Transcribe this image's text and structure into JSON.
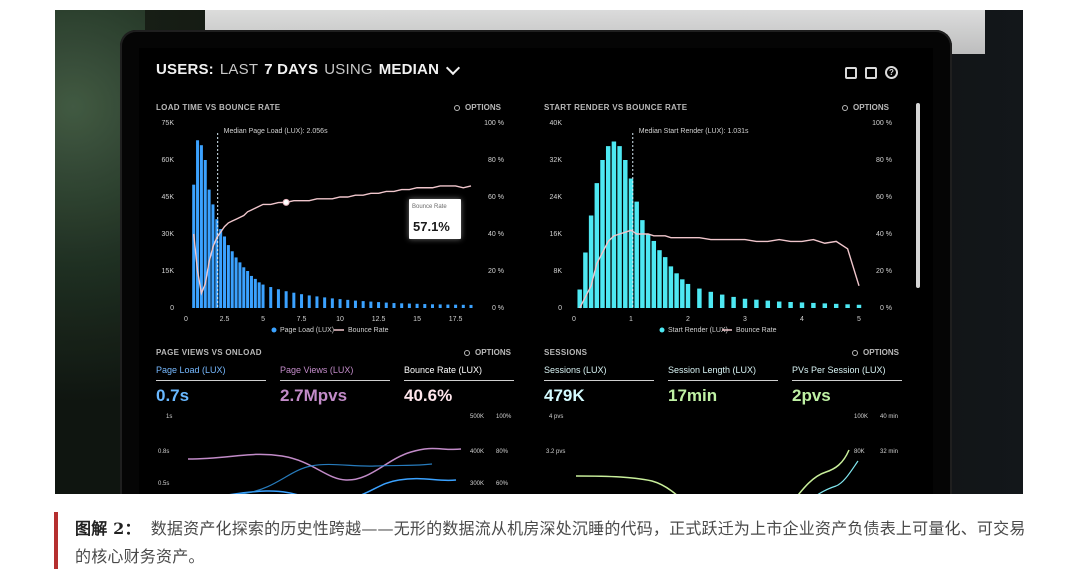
{
  "dashboard": {
    "title_main": "USERS:",
    "title_rest_1": "LAST",
    "title_days": "7 DAYS",
    "title_rest_2": "USING",
    "title_metric": "MEDIAN",
    "icons": [
      "monitor-icon",
      "share-icon",
      "help-icon"
    ],
    "options_label": "OPTIONS"
  },
  "panels": {
    "load_time": {
      "title": "LOAD TIME VS BOUNCE RATE",
      "median_label": "Median Page Load (LUX): 2.056s",
      "tooltip_title": "Bounce Rate",
      "tooltip_value": "57.1%",
      "legend_page_load": "Page Load (LUX)",
      "legend_bounce_rate": "Bounce Rate"
    },
    "start_render": {
      "title": "START RENDER VS BOUNCE RATE",
      "median_label": "Median Start Render (LUX): 1.031s",
      "legend_start_render": "Start Render (LUX)",
      "legend_bounce_rate": "Bounce Rate"
    },
    "page_views": {
      "title": "PAGE VIEWS VS ONLOAD",
      "page_load_label": "Page Load (LUX)",
      "page_load_value": "0.7s",
      "page_views_label": "Page Views (LUX)",
      "page_views_value": "2.7Mpvs",
      "bounce_rate_label": "Bounce Rate (LUX)",
      "bounce_rate_value": "40.6%",
      "axis_left": [
        "1s",
        "0.8s",
        "0.5s"
      ],
      "axis_right_1": [
        "500K",
        "400K",
        "300K"
      ],
      "axis_right_2": [
        "100%",
        "80%",
        "60%"
      ]
    },
    "sessions": {
      "title": "SESSIONS",
      "sessions_label": "Sessions (LUX)",
      "sessions_value": "479K",
      "length_label": "Session Length (LUX)",
      "length_value": "17min",
      "pvs_label": "PVs Per Session (LUX)",
      "pvs_value": "2pvs",
      "axis_left": [
        "4 pvs",
        "3.2 pvs"
      ],
      "axis_right_1": [
        "100K",
        "80K"
      ],
      "axis_right_2": [
        "40 min",
        "32 min"
      ]
    }
  },
  "caption": {
    "label": "图解 2：",
    "text": "数据资产化探索的历史性跨越——无形的数据流从机房深处沉睡的代码，正式跃迁为上市企业资产负债表上可量化、可交易的核心财务资产。"
  },
  "colors": {
    "blue": "#3ba2ff",
    "cyan": "#4ee8f2",
    "pink": "#f0c6cc",
    "stat_blue": "#69b8ff",
    "stat_purple": "#c28bc8",
    "stat_pink": "#ffe6ec",
    "stat_cyan": "#6de5ef",
    "stat_green": "#bff1a4",
    "caption_red": "#b52f2f"
  },
  "chart_data": [
    {
      "type": "bar",
      "title": "LOAD TIME VS BOUNCE RATE",
      "x": [
        0.5,
        0.75,
        1.0,
        1.25,
        1.5,
        1.75,
        2.0,
        2.25,
        2.5,
        2.75,
        3.0,
        3.25,
        3.5,
        3.75,
        4.0,
        4.25,
        4.5,
        4.75,
        5.0,
        5.5,
        6.0,
        6.5,
        7.0,
        7.5,
        8.0,
        8.5,
        9.0,
        9.5,
        10.0,
        10.5,
        11.0,
        11.5,
        12.0,
        12.5,
        13.0,
        13.5,
        14.0,
        14.5,
        15.0,
        15.5,
        16.0,
        16.5,
        17.0,
        17.5,
        18.0,
        18.5
      ],
      "series": [
        {
          "name": "Page Load (LUX)",
          "values": [
            50000,
            68000,
            66000,
            60000,
            48000,
            42000,
            36000,
            32000,
            29000,
            25500,
            23000,
            20500,
            18500,
            16500,
            15000,
            13000,
            11800,
            10400,
            9500,
            8500,
            7600,
            6800,
            6200,
            5600,
            5100,
            4700,
            4300,
            3900,
            3600,
            3300,
            3000,
            2800,
            2600,
            2400,
            2200,
            2000,
            1900,
            1800,
            1700,
            1600,
            1500,
            1450,
            1400,
            1350,
            1300,
            1250
          ]
        },
        {
          "name": "Bounce Rate",
          "values": [
            40,
            20,
            8,
            13,
            25,
            33,
            38,
            41,
            44,
            46,
            47,
            48,
            49,
            50,
            52,
            53,
            54,
            55,
            56,
            56,
            57,
            57.1,
            58,
            58,
            58,
            59,
            59,
            59,
            60,
            60,
            61,
            61,
            62,
            62,
            63,
            63,
            64,
            64,
            65,
            65,
            65,
            66,
            66,
            66,
            65,
            66
          ]
        }
      ],
      "xlim": [
        0,
        18.5
      ],
      "ylim": [
        0,
        75000
      ],
      "y2lim": [
        0,
        100
      ],
      "x_ticks": [
        "0",
        "2.5",
        "5",
        "7.5",
        "10",
        "12.5",
        "15",
        "17.5"
      ],
      "y_ticks": [
        "0",
        "15K",
        "30K",
        "45K",
        "60K",
        "75K"
      ],
      "y2_ticks": [
        "0 %",
        "20 %",
        "40 %",
        "60 %",
        "80 %",
        "100 %"
      ],
      "annotation": "Median Page Load (LUX): 2.056s",
      "legend": "bottom"
    },
    {
      "type": "bar",
      "title": "START RENDER VS BOUNCE RATE",
      "x": [
        0.1,
        0.2,
        0.3,
        0.4,
        0.5,
        0.6,
        0.7,
        0.8,
        0.9,
        1.0,
        1.1,
        1.2,
        1.3,
        1.4,
        1.5,
        1.6,
        1.7,
        1.8,
        1.9,
        2.0,
        2.2,
        2.4,
        2.6,
        2.8,
        3.0,
        3.2,
        3.4,
        3.6,
        3.8,
        4.0,
        4.2,
        4.4,
        4.6,
        4.8,
        5.0
      ],
      "series": [
        {
          "name": "Start Render (LUX)",
          "values": [
            4000,
            12000,
            20000,
            27000,
            32000,
            35000,
            36000,
            35000,
            32000,
            28000,
            23000,
            19000,
            16000,
            14500,
            12500,
            11000,
            9000,
            7500,
            6200,
            5200,
            4200,
            3500,
            2900,
            2400,
            2000,
            1800,
            1600,
            1400,
            1300,
            1200,
            1100,
            1000,
            900,
            800,
            700
          ]
        },
        {
          "name": "Bounce Rate",
          "values": [
            0,
            6,
            12,
            24,
            30,
            36,
            39,
            40,
            41,
            42,
            40,
            40,
            40,
            39,
            39,
            39,
            38,
            38,
            38,
            38,
            38,
            37,
            37,
            37,
            37,
            36,
            36,
            37,
            36,
            36,
            37,
            35,
            36,
            32,
            12
          ]
        }
      ],
      "xlim": [
        0,
        5
      ],
      "ylim": [
        0,
        40000
      ],
      "y2lim": [
        0,
        100
      ],
      "x_ticks": [
        "0",
        "1",
        "2",
        "3",
        "4",
        "5"
      ],
      "y_ticks": [
        "0",
        "8K",
        "16K",
        "24K",
        "32K",
        "40K"
      ],
      "y2_ticks": [
        "0 %",
        "20 %",
        "40 %",
        "60 %",
        "80 %",
        "100 %"
      ],
      "annotation": "Median Start Render (LUX): 1.031s",
      "legend": "bottom"
    }
  ]
}
